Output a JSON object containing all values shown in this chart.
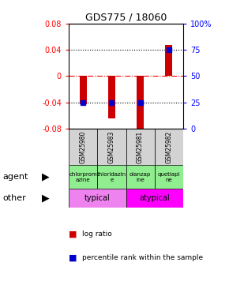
{
  "title": "GDS775 / 18060",
  "samples": [
    "GSM25980",
    "GSM25983",
    "GSM25981",
    "GSM25982"
  ],
  "log_ratios": [
    -0.043,
    -0.065,
    -0.085,
    0.047
  ],
  "percentile_ranks": [
    0.25,
    0.25,
    0.25,
    0.75
  ],
  "ylim_left": [
    -0.08,
    0.08
  ],
  "ylim_right": [
    0.0,
    1.0
  ],
  "yticks_left": [
    -0.08,
    -0.04,
    0.0,
    0.04,
    0.08
  ],
  "ytick_labels_left": [
    "-0.08",
    "-0.04",
    "0",
    "0.04",
    "0.08"
  ],
  "yticks_right": [
    0.0,
    0.25,
    0.5,
    0.75,
    1.0
  ],
  "ytick_labels_right": [
    "0",
    "25",
    "50",
    "75",
    "100%"
  ],
  "bar_color": "#cc0000",
  "marker_color": "#0000cc",
  "agent_labels": [
    "chlorprom\nazine",
    "thioridazin\ne",
    "olanzap\nine",
    "quetiapi\nne"
  ],
  "sample_bg_color": "#d3d3d3",
  "agent_bg_color": "#90ee90",
  "typical_color": "#ee82ee",
  "atypical_color": "#ff00ff",
  "legend_items": [
    "log ratio",
    "percentile rank within the sample"
  ],
  "legend_colors": [
    "#cc0000",
    "#0000cc"
  ],
  "bar_width": 0.25
}
